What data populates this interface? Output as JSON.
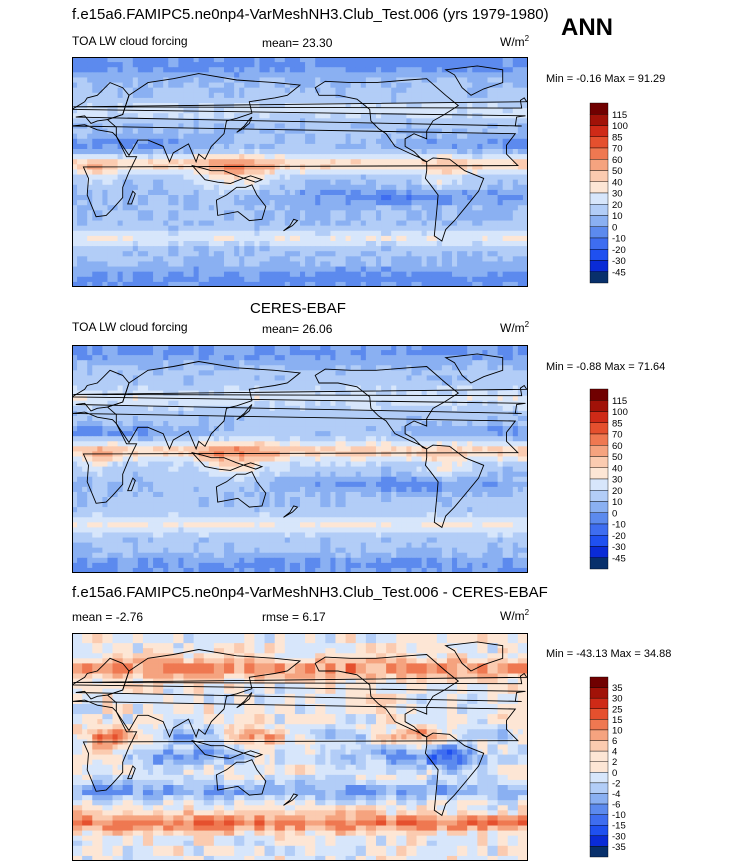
{
  "figure": {
    "title": "f.e15a6.FAMIPC5.ne0np4-VarMeshNH3.Club_Test.006 (yrs 1979-1980)",
    "season": "ANN"
  },
  "colors": {
    "diverging": [
      "#08306b",
      "#0a2bd6",
      "#1f50f0",
      "#3e6df0",
      "#5c8aee",
      "#8ab0f2",
      "#b2cdf7",
      "#d7e6fb",
      "#fde6d5",
      "#fbcbb0",
      "#f5a37f",
      "#ef7851",
      "#e5502e",
      "#cf2a17",
      "#a11208",
      "#700000"
    ]
  },
  "chart_data": [
    {
      "type": "heatmap",
      "panel": "model",
      "title": "",
      "subtitle_left": "TOA LW cloud forcing",
      "mean_label": "mean=",
      "mean_value": "23.30",
      "units": "W/m",
      "units_sup": "2",
      "minmax_text": "Min =  -0.16 Max =  91.29",
      "min": -0.16,
      "max": 91.29,
      "colorbar_levels": [
        "115",
        "100",
        "85",
        "70",
        "60",
        "50",
        "40",
        "30",
        "20",
        "10",
        "0",
        "-10",
        "-20",
        "-30",
        "-45"
      ]
    },
    {
      "type": "heatmap",
      "panel": "obs",
      "title": "CERES-EBAF",
      "subtitle_left": "TOA LW cloud forcing",
      "mean_label": "mean=",
      "mean_value": "26.06",
      "units": "W/m",
      "units_sup": "2",
      "minmax_text": "Min =  -0.88 Max =  71.64",
      "min": -0.88,
      "max": 71.64,
      "colorbar_levels": [
        "115",
        "100",
        "85",
        "70",
        "60",
        "50",
        "40",
        "30",
        "20",
        "10",
        "0",
        "-10",
        "-20",
        "-30",
        "-45"
      ]
    },
    {
      "type": "heatmap",
      "panel": "diff",
      "title": "f.e15a6.FAMIPC5.ne0np4-VarMeshNH3.Club_Test.006 - CERES-EBAF",
      "mean_label": "mean =",
      "mean_value": "-2.76",
      "rmse_label": "rmse =",
      "rmse_value": "6.17",
      "units": "W/m",
      "units_sup": "2",
      "minmax_text": "Min = -43.13 Max =  34.88",
      "min": -43.13,
      "max": 34.88,
      "colorbar_levels": [
        "35",
        "30",
        "25",
        "15",
        "10",
        "6",
        "4",
        "2",
        "0",
        "-2",
        "-4",
        "-6",
        "-10",
        "-15",
        "-30",
        "-35"
      ]
    }
  ]
}
